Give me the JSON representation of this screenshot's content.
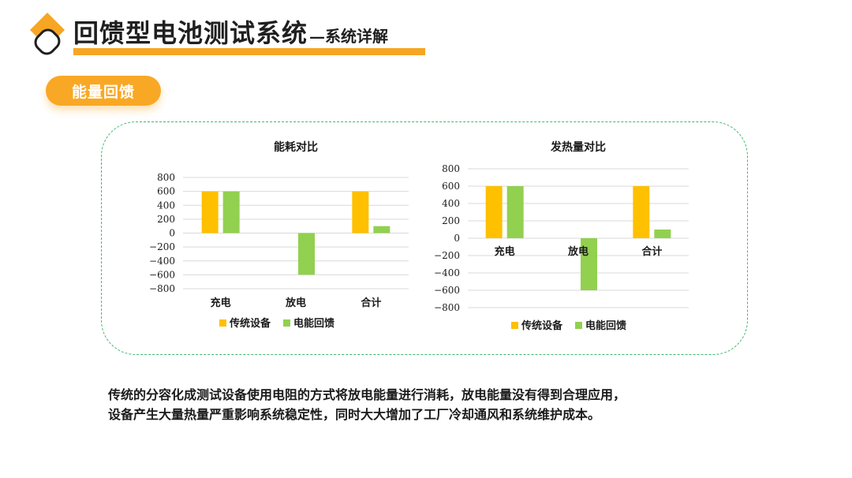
{
  "header": {
    "title": "回馈型电池测试系统",
    "subtitle": "—系统详解"
  },
  "section": {
    "label": "能量回馈"
  },
  "colors": {
    "accent": "#f6a623",
    "series_traditional": "#ffc000",
    "series_feedback": "#92d050",
    "frame": "#3dba6e"
  },
  "icons": {
    "logo": "diamond-logo-icon"
  },
  "chart_data": [
    {
      "type": "bar",
      "title": "能耗对比",
      "categories": [
        "充电",
        "放电",
        "合计"
      ],
      "series": [
        {
          "name": "传统设备",
          "values": [
            600,
            0,
            600
          ]
        },
        {
          "name": "电能回馈",
          "values": [
            600,
            -600,
            100
          ]
        }
      ],
      "ylim": [
        -800,
        800
      ],
      "yticks": [
        800,
        600,
        400,
        200,
        0,
        -200,
        -400,
        -600,
        -800
      ],
      "category_labels_position": "bottom",
      "grid": true,
      "legend": "bottom"
    },
    {
      "type": "bar",
      "title": "发热量对比",
      "categories": [
        "充电",
        "放电",
        "合计"
      ],
      "series": [
        {
          "name": "传统设备",
          "values": [
            600,
            0,
            600
          ]
        },
        {
          "name": "电能回馈",
          "values": [
            600,
            -600,
            100
          ]
        }
      ],
      "ylim": [
        -800,
        800
      ],
      "yticks": [
        800,
        600,
        400,
        200,
        0,
        -200,
        -400,
        -600,
        -800
      ],
      "category_labels_position": "axis",
      "grid": true,
      "legend": "bottom"
    }
  ],
  "description": {
    "lines": [
      "传统的分容化成测试设备使用电阻的方式将放电能量进行消耗，放电能量没有得到合理应用，",
      "设备产生大量热量严重影响系统稳定性，同时大大增加了工厂冷却通风和系统维护成本。"
    ]
  }
}
